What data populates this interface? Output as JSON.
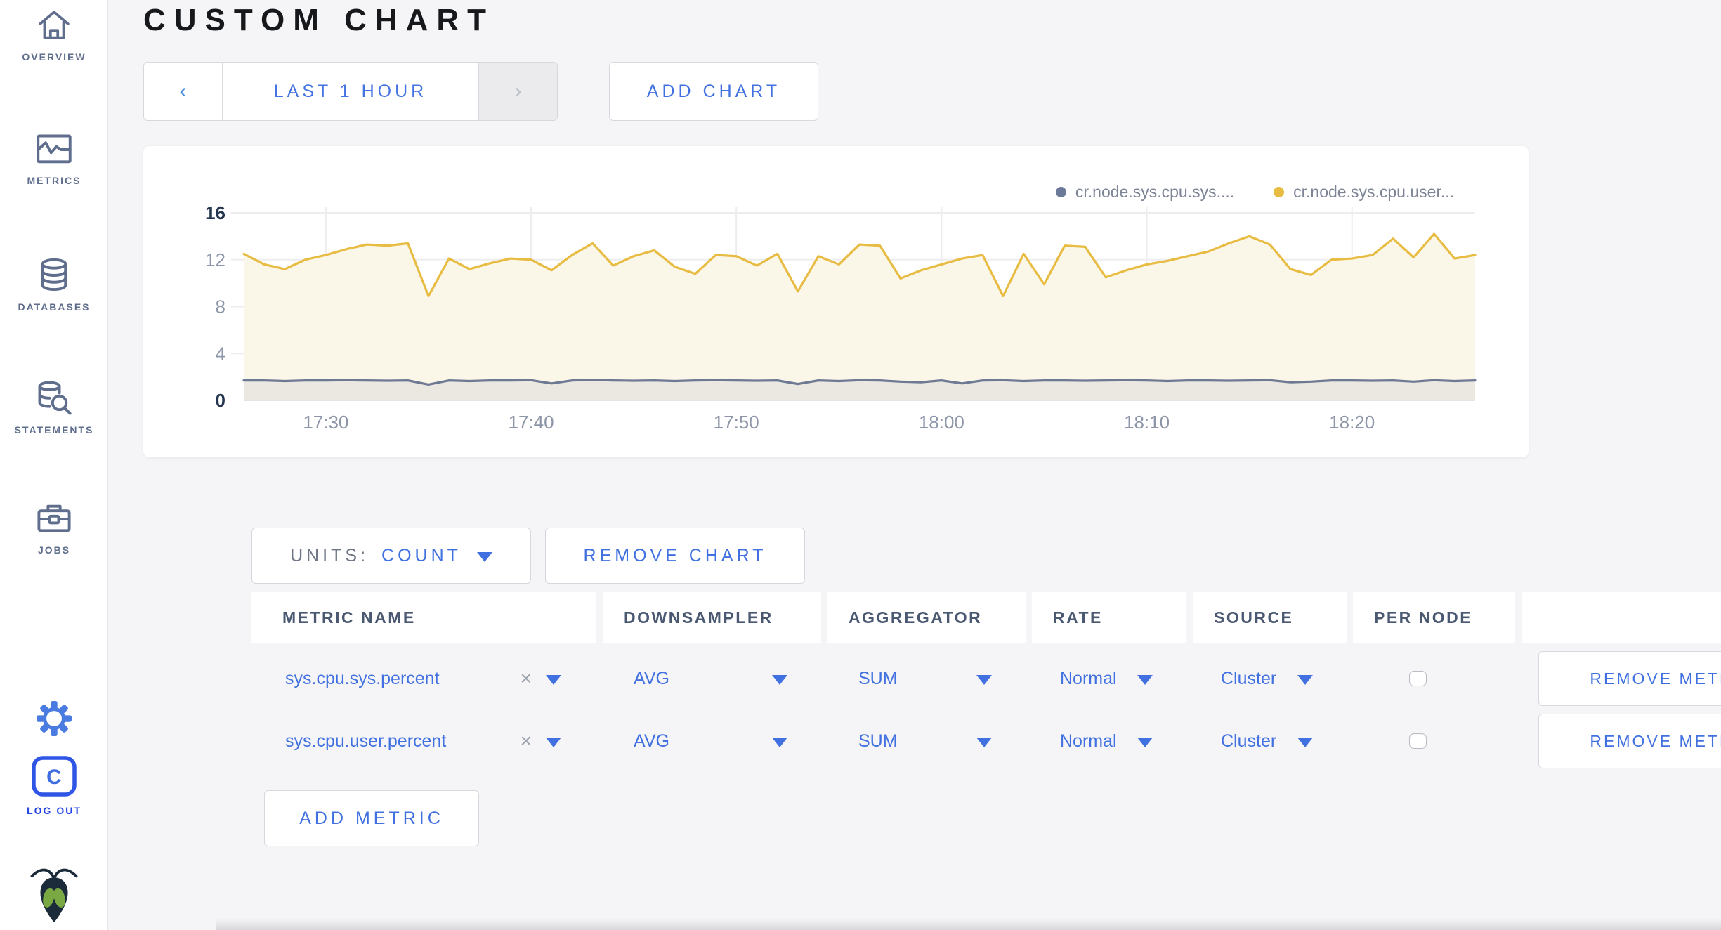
{
  "colors": {
    "accent_blue": "#4171e0",
    "logout_blue": "#2443e0",
    "sidebar_slate": "#5f6e8c",
    "page_bg": "#f5f5f7",
    "border": "#d6d8dd",
    "axis_dark": "#24364f",
    "axis_gray": "#8d96a8",
    "series_sys_color": "#6e7a93",
    "series_sys_fill": "#eae8e1",
    "series_user_color": "#e8bc42",
    "series_user_fill": "#faf6e8"
  },
  "icons": {
    "chevron_left": "‹",
    "chevron_right": "›",
    "clear": "×",
    "caret_down": "▼"
  },
  "sidebar": {
    "items": [
      {
        "label": "OVERVIEW",
        "icon": "home-icon"
      },
      {
        "label": "METRICS",
        "icon": "metrics-icon"
      },
      {
        "label": "DATABASES",
        "icon": "database-icon"
      },
      {
        "label": "STATEMENTS",
        "icon": "statements-icon"
      },
      {
        "label": "JOBS",
        "icon": "jobs-icon"
      }
    ],
    "logout_label": "LOG OUT"
  },
  "header": {
    "title": "CUSTOM CHART"
  },
  "toolbar": {
    "time_range_label": "LAST 1 HOUR",
    "add_chart_label": "ADD CHART"
  },
  "chart_card": {
    "legend": [
      {
        "label": "cr.node.sys.cpu.sys....",
        "color": "#6b7a99"
      },
      {
        "label": "cr.node.sys.cpu.user...",
        "color": "#e8bc42"
      }
    ]
  },
  "chart_data": {
    "type": "line",
    "title": "",
    "xlabel": "",
    "ylabel": "",
    "ylim": [
      0,
      16
    ],
    "y_ticks": [
      0,
      4,
      8,
      12,
      16
    ],
    "grid": true,
    "legend_position": "top-right",
    "x_start": "17:26",
    "x_end": "18:26",
    "point_interval_minutes": 1,
    "x_ticks": [
      {
        "label": "17:30",
        "minute_offset": 4
      },
      {
        "label": "17:40",
        "minute_offset": 14
      },
      {
        "label": "17:50",
        "minute_offset": 24
      },
      {
        "label": "18:00",
        "minute_offset": 34
      },
      {
        "label": "18:10",
        "minute_offset": 44
      },
      {
        "label": "18:20",
        "minute_offset": 54
      }
    ],
    "series": [
      {
        "name": "cr.node.sys.cpu.sys....",
        "color": "#6e7a93",
        "fill": "#eae8e1",
        "values": [
          1.7,
          1.7,
          1.65,
          1.7,
          1.7,
          1.72,
          1.7,
          1.68,
          1.7,
          1.35,
          1.7,
          1.65,
          1.7,
          1.7,
          1.72,
          1.45,
          1.7,
          1.75,
          1.7,
          1.68,
          1.7,
          1.65,
          1.7,
          1.72,
          1.7,
          1.68,
          1.7,
          1.4,
          1.7,
          1.65,
          1.72,
          1.7,
          1.6,
          1.55,
          1.7,
          1.45,
          1.7,
          1.72,
          1.65,
          1.7,
          1.7,
          1.68,
          1.7,
          1.72,
          1.7,
          1.65,
          1.7,
          1.7,
          1.68,
          1.7,
          1.72,
          1.55,
          1.6,
          1.7,
          1.7,
          1.68,
          1.7,
          1.6,
          1.72,
          1.65,
          1.7
        ]
      },
      {
        "name": "cr.node.sys.cpu.user...",
        "color": "#e8bc42",
        "fill": "#faf6e8",
        "values": [
          12.5,
          11.6,
          11.2,
          12.0,
          12.4,
          12.9,
          13.3,
          13.2,
          13.4,
          8.9,
          12.1,
          11.2,
          11.7,
          12.1,
          12.0,
          11.1,
          12.4,
          13.4,
          11.5,
          12.3,
          12.8,
          11.4,
          10.8,
          12.4,
          12.3,
          11.5,
          12.5,
          9.3,
          12.3,
          11.6,
          13.3,
          13.2,
          10.4,
          11.1,
          11.6,
          12.1,
          12.4,
          8.9,
          12.5,
          9.9,
          13.2,
          13.1,
          10.5,
          11.1,
          11.6,
          11.9,
          12.3,
          12.7,
          13.4,
          14.0,
          13.3,
          11.2,
          10.7,
          12.0,
          12.1,
          12.4,
          13.8,
          12.2,
          14.2,
          12.1,
          12.4
        ]
      }
    ]
  },
  "units_bar": {
    "units_label": "UNITS:",
    "units_value": "COUNT",
    "remove_chart_label": "REMOVE CHART"
  },
  "metrics_table": {
    "columns": [
      "METRIC NAME",
      "DOWNSAMPLER",
      "AGGREGATOR",
      "RATE",
      "SOURCE",
      "PER NODE",
      ""
    ],
    "rows": [
      {
        "metric_name": "sys.cpu.sys.percent",
        "downsampler": "AVG",
        "aggregator": "SUM",
        "rate": "Normal",
        "source": "Cluster",
        "per_node_checked": false,
        "remove_label": "REMOVE METRIC"
      },
      {
        "metric_name": "sys.cpu.user.percent",
        "downsampler": "AVG",
        "aggregator": "SUM",
        "rate": "Normal",
        "source": "Cluster",
        "per_node_checked": false,
        "remove_label": "REMOVE METRIC"
      }
    ],
    "add_metric_label": "ADD METRIC"
  }
}
